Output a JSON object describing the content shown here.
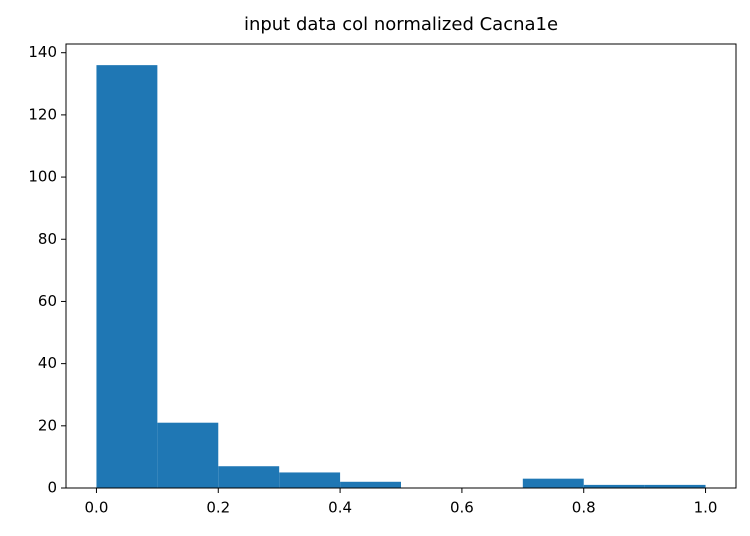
{
  "chart_data": {
    "type": "histogram",
    "title": "input data col normalized Cacna1e",
    "bins": [
      0.0,
      0.1,
      0.2,
      0.3,
      0.4,
      0.5,
      0.6,
      0.7,
      0.8,
      0.9,
      1.0
    ],
    "values": [
      136,
      21,
      7,
      5,
      2,
      0,
      0,
      3,
      1,
      1
    ],
    "color": "#1f77b4",
    "xlim": [
      -0.05,
      1.05
    ],
    "xticks": [
      {
        "value": 0,
        "label": "0.0"
      },
      0.2,
      0.4,
      0.6,
      0.8,
      {
        "value": 1,
        "label": "1.0"
      }
    ],
    "ylim": [
      0,
      142.8
    ],
    "yticks": [
      0,
      20,
      40,
      60,
      80,
      100,
      120,
      140
    ],
    "grid": false
  }
}
